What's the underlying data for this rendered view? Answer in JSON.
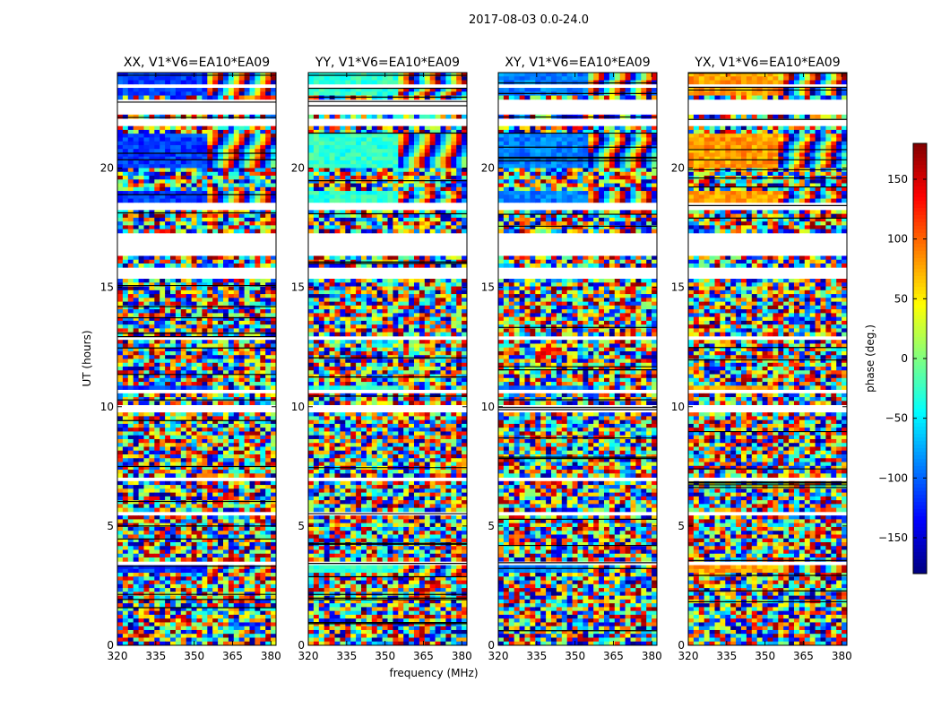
{
  "chart_data": {
    "type": "heatmap",
    "suptitle": "2017-08-03 0.0-24.0",
    "xlabel": "frequency (MHz)",
    "ylabel": "UT (hours)",
    "xlim": [
      320,
      382
    ],
    "ylim": [
      0,
      24
    ],
    "xticks": [
      320,
      335,
      350,
      365,
      380
    ],
    "yticks": [
      0,
      5,
      10,
      15,
      20
    ],
    "panels": [
      {
        "title": "XX, V1*V6=EA10*EA09",
        "character": "xx"
      },
      {
        "title": "YY, V1*V6=EA10*EA09",
        "character": "yy"
      },
      {
        "title": "XY, V1*V6=EA10*EA09",
        "character": "cross"
      },
      {
        "title": "YX, V1*V6=EA10*EA09",
        "character": "yx"
      }
    ],
    "flagged_hours": [
      [
        16.3,
        17.3
      ],
      [
        15.3,
        15.8
      ],
      [
        10.5,
        10.7
      ],
      [
        9.8,
        10.0
      ],
      [
        22.3,
        22.8
      ],
      [
        21.8,
        22.0
      ],
      [
        23.3,
        23.5
      ],
      [
        18.3,
        18.6
      ],
      [
        6.9,
        7.1
      ],
      [
        3.4,
        3.5
      ],
      [
        5.5,
        5.6
      ],
      [
        12.8,
        12.9
      ]
    ],
    "smooth_bands_hours": [
      [
        23.0,
        24.0
      ],
      [
        20.0,
        21.5
      ],
      [
        18.6,
        19.0
      ],
      [
        10.6,
        10.9
      ],
      [
        3.0,
        3.3
      ]
    ],
    "colorbar": {
      "label": "phase (deg.)",
      "min": -180,
      "max": 180,
      "ticks": [
        -150,
        -100,
        -50,
        0,
        50,
        100,
        150
      ],
      "tick_labels": [
        "−150",
        "−100",
        "−50",
        "0",
        "50",
        "100",
        "150"
      ],
      "colormap": "jet"
    }
  }
}
